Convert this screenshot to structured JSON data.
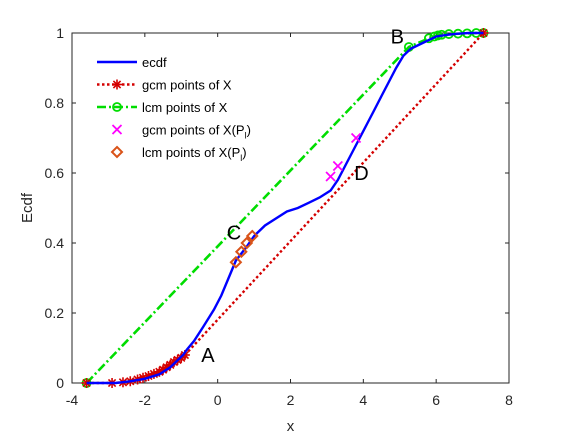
{
  "chart_data": {
    "type": "line",
    "xlabel": "x",
    "ylabel": "Ecdf",
    "xlim": [
      -4,
      8
    ],
    "ylim": [
      0,
      1
    ],
    "xticks": [
      -4,
      -2,
      0,
      2,
      4,
      6,
      8
    ],
    "yticks": [
      0,
      0.2,
      0.4,
      0.6,
      0.8,
      1
    ],
    "grid": false,
    "legend_position": "top-left",
    "series": [
      {
        "name": "ecdf",
        "style": "solid",
        "color": "#0000ff",
        "x": [
          -3.6,
          -3.3,
          -2.8,
          -2.4,
          -2.0,
          -1.6,
          -1.3,
          -1.1,
          -0.95,
          -0.85,
          -0.65,
          -0.4,
          -0.1,
          0.1,
          0.3,
          0.5,
          0.8,
          1.0,
          1.3,
          1.6,
          1.9,
          2.2,
          2.5,
          2.8,
          3.1,
          3.3,
          3.5,
          3.7,
          3.9,
          4.1,
          4.3,
          4.5,
          4.7,
          4.9,
          5.1,
          5.3,
          5.6,
          5.8,
          6.0,
          6.3,
          6.6,
          6.9,
          7.1,
          7.3
        ],
        "y": [
          0.0,
          0.0,
          0.0,
          0.005,
          0.012,
          0.025,
          0.045,
          0.065,
          0.08,
          0.095,
          0.12,
          0.16,
          0.21,
          0.25,
          0.3,
          0.35,
          0.39,
          0.42,
          0.45,
          0.47,
          0.49,
          0.5,
          0.515,
          0.53,
          0.55,
          0.58,
          0.62,
          0.66,
          0.7,
          0.74,
          0.78,
          0.82,
          0.86,
          0.9,
          0.935,
          0.955,
          0.97,
          0.98,
          0.99,
          0.995,
          0.998,
          1.0,
          1.0,
          1.0
        ]
      },
      {
        "name": "gcm points of X",
        "style": "dotted",
        "marker": "asterisk",
        "color": "#d40000",
        "x": [
          -3.6,
          -2.9,
          -2.6,
          -2.4,
          -2.2,
          -2.05,
          -1.9,
          -1.75,
          -1.6,
          -1.5,
          -1.4,
          -1.3,
          -1.2,
          -1.1,
          -1.0,
          -0.9,
          7.3
        ],
        "y": [
          0.0,
          0.0,
          0.002,
          0.005,
          0.01,
          0.015,
          0.02,
          0.026,
          0.032,
          0.038,
          0.045,
          0.052,
          0.06,
          0.066,
          0.072,
          0.08,
          1.0
        ]
      },
      {
        "name": "lcm points of X",
        "style": "dash-dot",
        "marker": "circle",
        "color": "#00dd00",
        "x": [
          -3.6,
          5.25,
          5.8,
          5.95,
          6.05,
          6.15,
          6.35,
          6.6,
          6.85,
          7.1,
          7.3
        ],
        "y": [
          0.0,
          0.96,
          0.985,
          0.99,
          0.993,
          0.995,
          0.997,
          0.998,
          0.999,
          1.0,
          1.0
        ]
      },
      {
        "name": "gcm points of X(P_l)",
        "marker": "x",
        "color": "#ff00ff",
        "x": [
          3.1,
          3.3,
          3.8
        ],
        "y": [
          0.59,
          0.62,
          0.7
        ]
      },
      {
        "name": "lcm points of X(P_l)",
        "marker": "diamond",
        "color": "#d95319",
        "x": [
          0.5,
          0.65,
          0.8,
          0.95
        ],
        "y": [
          0.345,
          0.375,
          0.4,
          0.42
        ]
      }
    ],
    "legend": {
      "entries": [
        {
          "main": "ecdf",
          "sub": ""
        },
        {
          "main": "gcm points of X",
          "sub": ""
        },
        {
          "main": "lcm points of X",
          "sub": ""
        },
        {
          "main": "gcm points of X(P",
          "sub": "l",
          "tail": ")"
        },
        {
          "main": "lcm points of X(P",
          "sub": "l",
          "tail": ")"
        }
      ]
    },
    "annotations": [
      {
        "text": "A",
        "x": -0.45,
        "y": 0.06
      },
      {
        "text": "B",
        "x": 4.75,
        "y": 0.97
      },
      {
        "text": "C",
        "x": 0.25,
        "y": 0.41
      },
      {
        "text": "D",
        "x": 3.75,
        "y": 0.58
      }
    ]
  }
}
